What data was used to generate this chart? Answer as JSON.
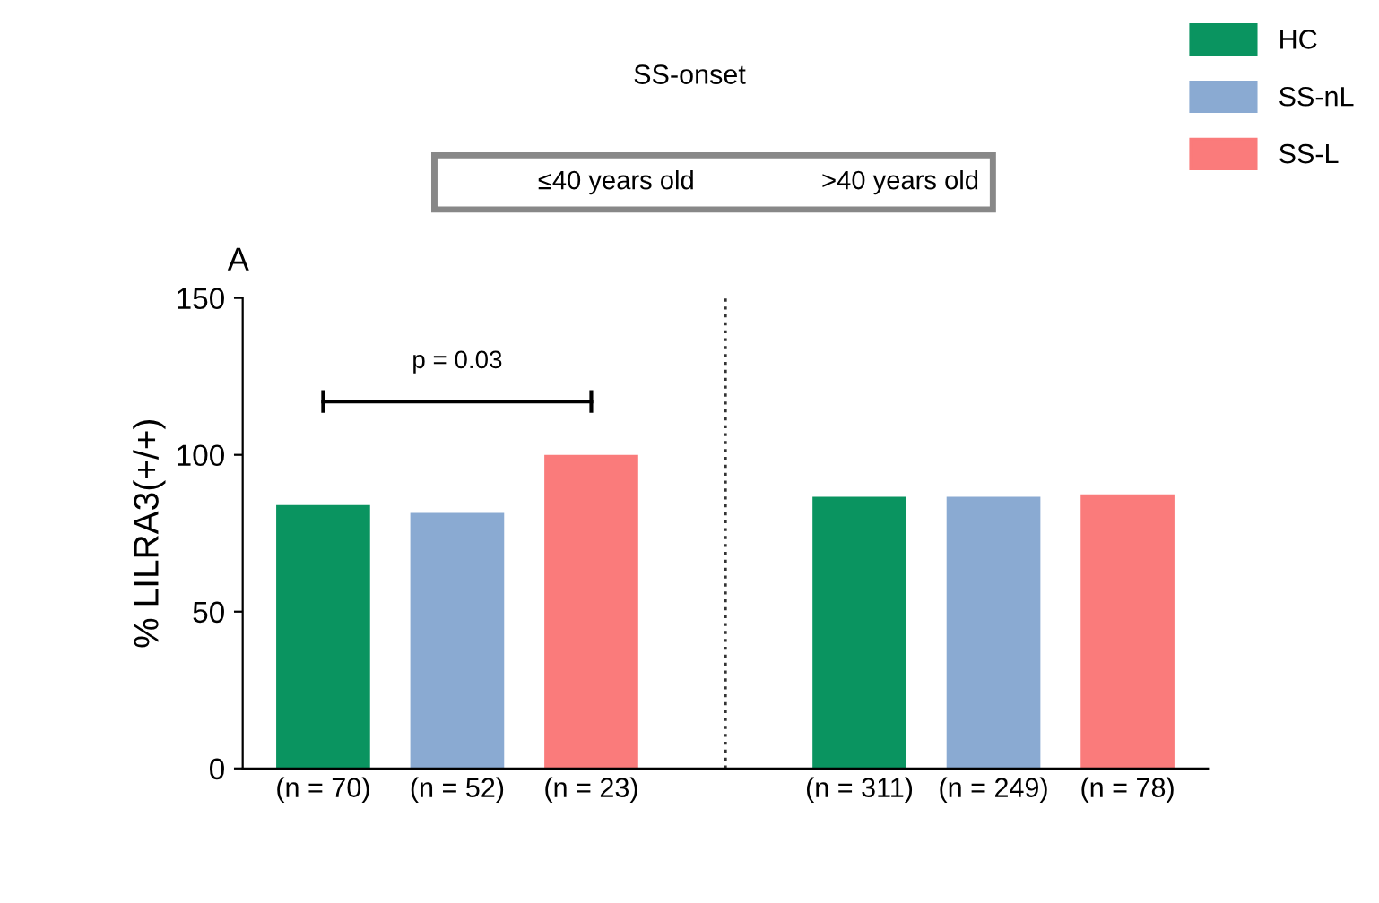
{
  "chart_data": {
    "type": "bar",
    "title": "SS-onset",
    "ylabel": "% LILRA3(+/+)",
    "categories": [
      "(n = 70)",
      "(n = 52)",
      "(n = 23)",
      null,
      "(n = 311)",
      "(n = 249)",
      "(n = 78)"
    ],
    "series": [
      {
        "name": "HC",
        "color": "#0a9460",
        "values": [
          84,
          null,
          null,
          null,
          86.6,
          null,
          null
        ]
      },
      {
        "name": "SS-nL",
        "color": "#8aaad2",
        "values": [
          null,
          81.5,
          null,
          null,
          null,
          86.6,
          null
        ]
      },
      {
        "name": "SS-L",
        "color": "#fa7b7b",
        "values": [
          null,
          null,
          100,
          null,
          null,
          null,
          87.4
        ]
      }
    ],
    "ylim": [
      0,
      150
    ],
    "yticks": [
      0,
      50,
      100,
      150
    ],
    "legend": "top right",
    "annotations": [
      "A",
      "p = 0.03",
      "≤40 years old",
      ">40 years old"
    ]
  }
}
